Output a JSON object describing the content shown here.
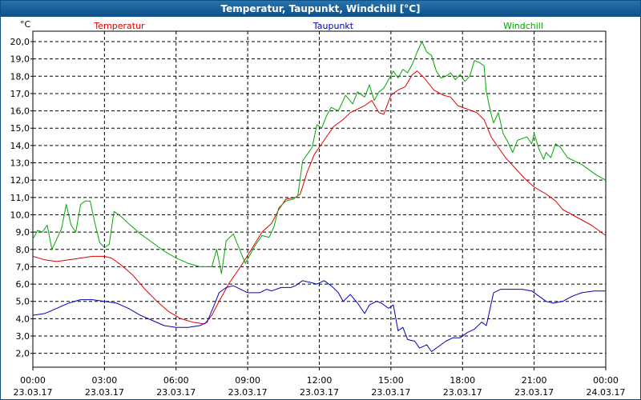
{
  "window": {
    "title": "Temperatur, Taupunkt, Windchill [°C]"
  },
  "chart_data": {
    "type": "line",
    "title": "Temperatur, Taupunkt, Windchill [°C]",
    "ylabel": "°C",
    "ylim": [
      1.2,
      20.6
    ],
    "xlim_hours": [
      0,
      24
    ],
    "grid": true,
    "y_ticks": [
      "2,0",
      "3,0",
      "4,0",
      "5,0",
      "6,0",
      "7,0",
      "8,0",
      "9,0",
      "10,0",
      "11,0",
      "12,0",
      "13,0",
      "14,0",
      "15,0",
      "16,0",
      "17,0",
      "18,0",
      "19,0",
      "20,0"
    ],
    "y_tick_values": [
      2,
      3,
      4,
      5,
      6,
      7,
      8,
      9,
      10,
      11,
      12,
      13,
      14,
      15,
      16,
      17,
      18,
      19,
      20
    ],
    "x_tick_values": [
      0,
      3,
      6,
      9,
      12,
      15,
      18,
      21,
      24
    ],
    "x_ticks": [
      {
        "time": "00:00",
        "date": "23.03.17"
      },
      {
        "time": "03:00",
        "date": "23.03.17"
      },
      {
        "time": "06:00",
        "date": "23.03.17"
      },
      {
        "time": "09:00",
        "date": "23.03.17"
      },
      {
        "time": "12:00",
        "date": "23.03.17"
      },
      {
        "time": "15:00",
        "date": "23.03.17"
      },
      {
        "time": "18:00",
        "date": "23.03.17"
      },
      {
        "time": "21:00",
        "date": "23.03.17"
      },
      {
        "time": "00:00",
        "date": "24.03.17"
      }
    ],
    "series": [
      {
        "name": "Temperatur",
        "color": "#e00000",
        "points": [
          [
            0,
            7.6
          ],
          [
            0.5,
            7.4
          ],
          [
            1,
            7.3
          ],
          [
            1.5,
            7.4
          ],
          [
            2,
            7.5
          ],
          [
            2.5,
            7.6
          ],
          [
            3,
            7.6
          ],
          [
            3.3,
            7.5
          ],
          [
            3.7,
            7.1
          ],
          [
            4.2,
            6.5
          ],
          [
            4.7,
            5.7
          ],
          [
            5.2,
            5.0
          ],
          [
            5.7,
            4.4
          ],
          [
            6.2,
            4.0
          ],
          [
            6.7,
            3.8
          ],
          [
            7.2,
            3.7
          ],
          [
            7.5,
            4.2
          ],
          [
            7.8,
            5.0
          ],
          [
            8.2,
            6.0
          ],
          [
            8.7,
            7.0
          ],
          [
            9.2,
            8.1
          ],
          [
            9.6,
            9.0
          ],
          [
            10,
            9.5
          ],
          [
            10.3,
            10.3
          ],
          [
            10.6,
            10.9
          ],
          [
            11,
            11.0
          ],
          [
            11.2,
            11.2
          ],
          [
            11.5,
            12.5
          ],
          [
            11.8,
            13.5
          ],
          [
            12.2,
            14.3
          ],
          [
            12.6,
            15.1
          ],
          [
            13,
            15.5
          ],
          [
            13.3,
            15.9
          ],
          [
            13.6,
            16.1
          ],
          [
            13.9,
            16.3
          ],
          [
            14.2,
            16.6
          ],
          [
            14.5,
            15.9
          ],
          [
            14.7,
            15.8
          ],
          [
            15,
            16.9
          ],
          [
            15.3,
            17.2
          ],
          [
            15.6,
            17.4
          ],
          [
            15.9,
            18.1
          ],
          [
            16.1,
            18.3
          ],
          [
            16.4,
            17.9
          ],
          [
            16.8,
            17.2
          ],
          [
            17.2,
            16.9
          ],
          [
            17.5,
            16.8
          ],
          [
            17.8,
            16.3
          ],
          [
            18.2,
            16.1
          ],
          [
            18.6,
            15.9
          ],
          [
            18.9,
            15.5
          ],
          [
            19.2,
            14.5
          ],
          [
            19.5,
            13.9
          ],
          [
            19.8,
            13.3
          ],
          [
            20.2,
            12.7
          ],
          [
            20.6,
            12.1
          ],
          [
            21,
            11.6
          ],
          [
            21.5,
            11.2
          ],
          [
            21.9,
            10.8
          ],
          [
            22.2,
            10.3
          ],
          [
            22.6,
            10.0
          ],
          [
            23,
            9.7
          ],
          [
            23.4,
            9.4
          ],
          [
            23.8,
            9.0
          ],
          [
            24,
            8.8
          ]
        ]
      },
      {
        "name": "Taupunkt",
        "color": "#0000c0",
        "points": [
          [
            0,
            4.2
          ],
          [
            0.5,
            4.3
          ],
          [
            1,
            4.6
          ],
          [
            1.5,
            4.9
          ],
          [
            2,
            5.1
          ],
          [
            2.5,
            5.1
          ],
          [
            3,
            5.0
          ],
          [
            3.5,
            4.9
          ],
          [
            4,
            4.6
          ],
          [
            4.5,
            4.2
          ],
          [
            5,
            3.9
          ],
          [
            5.5,
            3.6
          ],
          [
            6,
            3.5
          ],
          [
            6.5,
            3.5
          ],
          [
            7,
            3.6
          ],
          [
            7.3,
            3.8
          ],
          [
            7.6,
            4.8
          ],
          [
            7.8,
            5.5
          ],
          [
            8.1,
            5.8
          ],
          [
            8.4,
            5.9
          ],
          [
            8.7,
            5.7
          ],
          [
            9,
            5.5
          ],
          [
            9.5,
            5.5
          ],
          [
            9.8,
            5.7
          ],
          [
            10,
            5.6
          ],
          [
            10.4,
            5.8
          ],
          [
            10.8,
            5.8
          ],
          [
            11,
            5.9
          ],
          [
            11.3,
            6.2
          ],
          [
            11.6,
            6.1
          ],
          [
            11.9,
            6.0
          ],
          [
            12.2,
            6.2
          ],
          [
            12.5,
            5.9
          ],
          [
            12.8,
            5.5
          ],
          [
            13,
            5.0
          ],
          [
            13.3,
            5.4
          ],
          [
            13.6,
            4.9
          ],
          [
            13.9,
            4.3
          ],
          [
            14.1,
            4.8
          ],
          [
            14.4,
            5.0
          ],
          [
            14.6,
            4.9
          ],
          [
            14.9,
            4.6
          ],
          [
            15.1,
            4.8
          ],
          [
            15.3,
            3.3
          ],
          [
            15.5,
            3.5
          ],
          [
            15.7,
            2.8
          ],
          [
            16,
            2.7
          ],
          [
            16.2,
            2.3
          ],
          [
            16.5,
            2.5
          ],
          [
            16.7,
            2.1
          ],
          [
            17,
            2.4
          ],
          [
            17.3,
            2.7
          ],
          [
            17.6,
            2.9
          ],
          [
            17.9,
            2.9
          ],
          [
            18.2,
            3.2
          ],
          [
            18.5,
            3.4
          ],
          [
            18.8,
            3.8
          ],
          [
            19,
            3.6
          ],
          [
            19.3,
            5.5
          ],
          [
            19.6,
            5.7
          ],
          [
            20,
            5.7
          ],
          [
            20.5,
            5.7
          ],
          [
            20.9,
            5.6
          ],
          [
            21.2,
            5.3
          ],
          [
            21.5,
            5.0
          ],
          [
            21.8,
            4.9
          ],
          [
            22.2,
            5.0
          ],
          [
            22.6,
            5.3
          ],
          [
            23,
            5.5
          ],
          [
            23.5,
            5.6
          ],
          [
            24,
            5.6
          ]
        ]
      },
      {
        "name": "Windchill",
        "color": "#00a800",
        "points": [
          [
            0,
            8.6
          ],
          [
            0.2,
            9.1
          ],
          [
            0.4,
            9.0
          ],
          [
            0.6,
            9.4
          ],
          [
            0.8,
            8.0
          ],
          [
            1,
            8.6
          ],
          [
            1.2,
            9.2
          ],
          [
            1.4,
            10.6
          ],
          [
            1.6,
            9.4
          ],
          [
            1.8,
            9.0
          ],
          [
            2,
            10.6
          ],
          [
            2.2,
            10.8
          ],
          [
            2.4,
            10.8
          ],
          [
            2.6,
            9.5
          ],
          [
            2.8,
            8.4
          ],
          [
            3,
            8.1
          ],
          [
            3.2,
            8.3
          ],
          [
            3.4,
            10.2
          ],
          [
            3.7,
            9.9
          ],
          [
            4,
            9.5
          ],
          [
            4.5,
            8.9
          ],
          [
            5,
            8.4
          ],
          [
            5.5,
            7.9
          ],
          [
            6,
            7.5
          ],
          [
            6.5,
            7.2
          ],
          [
            7,
            7.0
          ],
          [
            7.5,
            7.0
          ],
          [
            7.7,
            8.0
          ],
          [
            7.9,
            6.6
          ],
          [
            8.1,
            8.5
          ],
          [
            8.4,
            8.9
          ],
          [
            8.6,
            8.2
          ],
          [
            8.9,
            7.2
          ],
          [
            9.1,
            7.7
          ],
          [
            9.3,
            8.2
          ],
          [
            9.6,
            8.8
          ],
          [
            9.9,
            8.7
          ],
          [
            10.1,
            9.3
          ],
          [
            10.3,
            10.4
          ],
          [
            10.6,
            10.8
          ],
          [
            10.9,
            10.9
          ],
          [
            11.1,
            11.1
          ],
          [
            11.3,
            13.1
          ],
          [
            11.5,
            13.5
          ],
          [
            11.7,
            13.9
          ],
          [
            11.9,
            15.2
          ],
          [
            12.1,
            15.0
          ],
          [
            12.3,
            15.7
          ],
          [
            12.5,
            16.2
          ],
          [
            12.8,
            16.0
          ],
          [
            13.1,
            16.9
          ],
          [
            13.4,
            16.4
          ],
          [
            13.6,
            17.1
          ],
          [
            13.9,
            16.8
          ],
          [
            14.1,
            17.5
          ],
          [
            14.3,
            16.6
          ],
          [
            14.5,
            17.1
          ],
          [
            14.7,
            17.3
          ],
          [
            14.9,
            17.8
          ],
          [
            15.1,
            18.3
          ],
          [
            15.3,
            17.9
          ],
          [
            15.5,
            18.4
          ],
          [
            15.7,
            18.2
          ],
          [
            15.9,
            18.7
          ],
          [
            16.1,
            19.4
          ],
          [
            16.3,
            20.0
          ],
          [
            16.5,
            19.4
          ],
          [
            16.7,
            19.2
          ],
          [
            16.9,
            18.3
          ],
          [
            17.1,
            17.9
          ],
          [
            17.3,
            18.0
          ],
          [
            17.5,
            18.2
          ],
          [
            17.7,
            17.8
          ],
          [
            17.9,
            18.1
          ],
          [
            18.1,
            17.7
          ],
          [
            18.3,
            18.0
          ],
          [
            18.5,
            18.9
          ],
          [
            18.7,
            18.8
          ],
          [
            18.9,
            18.6
          ],
          [
            19,
            17.1
          ],
          [
            19.2,
            15.8
          ],
          [
            19.3,
            15.3
          ],
          [
            19.5,
            15.9
          ],
          [
            19.7,
            14.7
          ],
          [
            19.9,
            14.2
          ],
          [
            20.1,
            13.6
          ],
          [
            20.3,
            14.3
          ],
          [
            20.5,
            14.4
          ],
          [
            20.7,
            14.5
          ],
          [
            20.9,
            14.1
          ],
          [
            21,
            14.7
          ],
          [
            21.2,
            13.8
          ],
          [
            21.4,
            13.2
          ],
          [
            21.5,
            13.6
          ],
          [
            21.7,
            13.3
          ],
          [
            21.9,
            14.1
          ],
          [
            22.1,
            13.9
          ],
          [
            22.4,
            13.3
          ],
          [
            22.7,
            13.1
          ],
          [
            23,
            12.9
          ],
          [
            23.3,
            12.6
          ],
          [
            23.6,
            12.3
          ],
          [
            24,
            12.0
          ]
        ]
      }
    ]
  }
}
